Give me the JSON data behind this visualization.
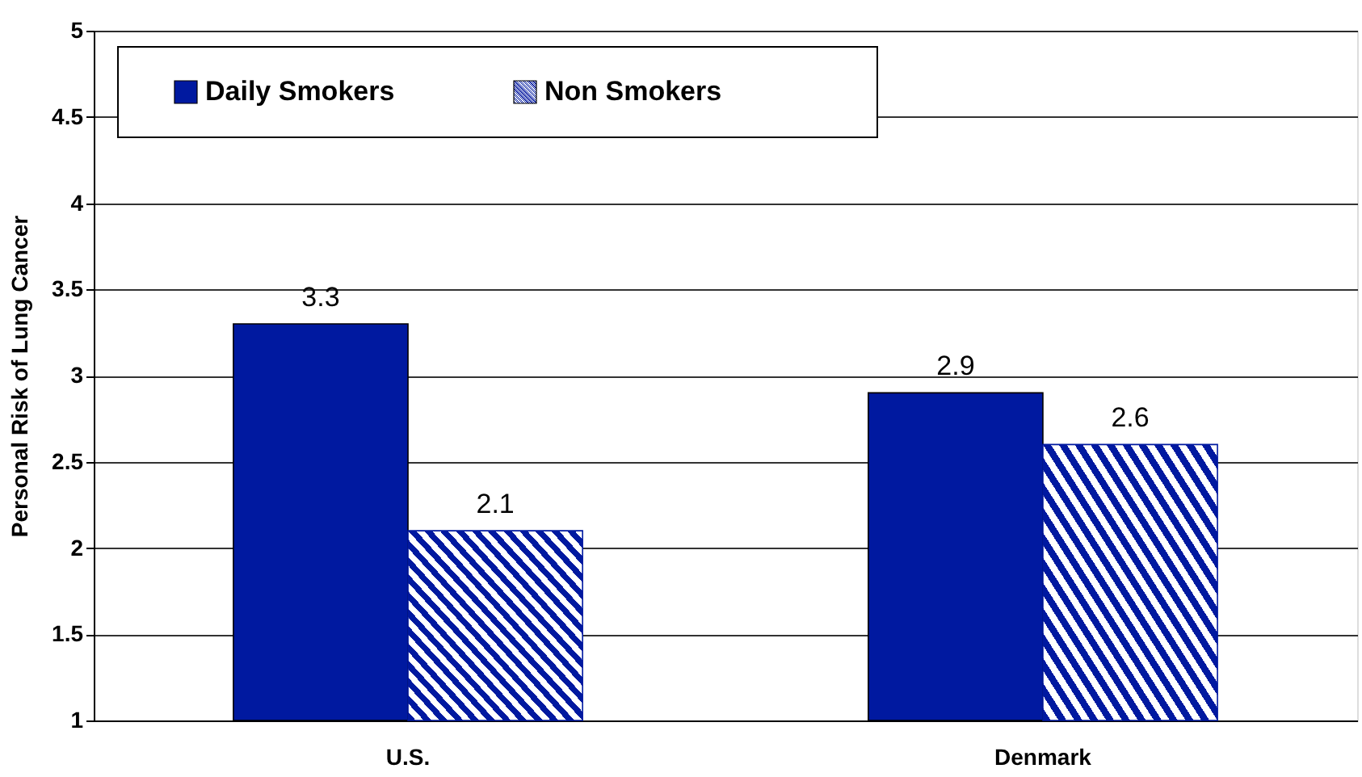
{
  "chart_data": {
    "type": "bar",
    "categories": [
      "U.S.",
      "Denmark"
    ],
    "ylabel": "Personal Risk of Lung Cancer",
    "series": [
      {
        "name": "Daily Smokers",
        "color": "#0019a0",
        "values": [
          3.3,
          2.9
        ]
      },
      {
        "name": "Non Smokers",
        "color": "#0019a0",
        "values": [
          2.1,
          2.6
        ]
      }
    ],
    "ylim": [
      1,
      5
    ],
    "yticks": [
      1,
      1.5,
      2,
      2.5,
      3,
      3.5,
      4,
      4.5,
      5
    ],
    "grid": "y",
    "data_labels": true,
    "legend": "top left"
  }
}
